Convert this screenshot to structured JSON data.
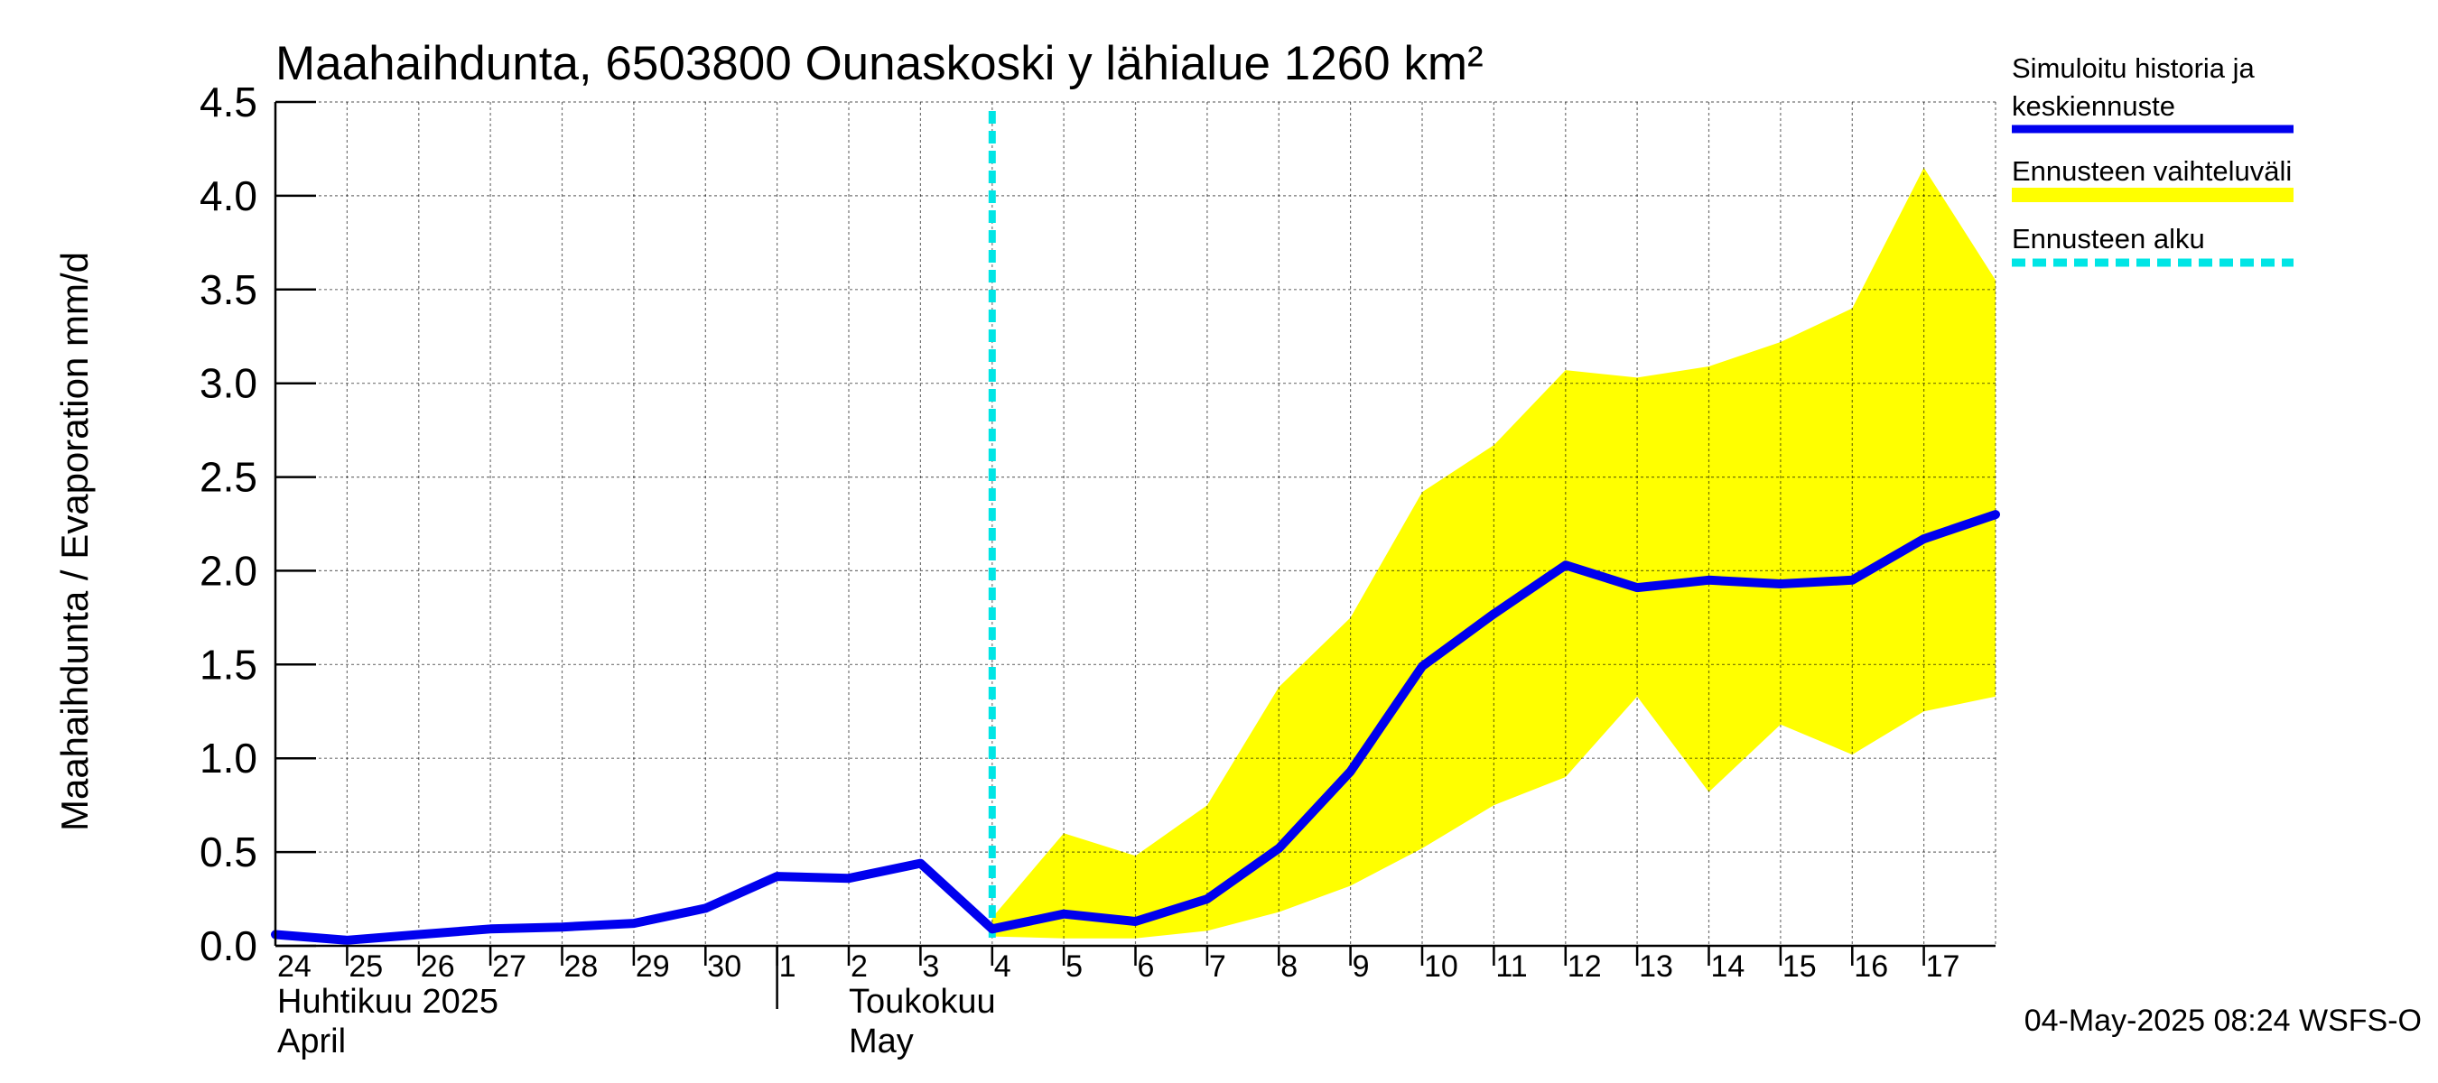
{
  "chart_data": {
    "type": "line",
    "title": "Maahaihdunta, 6503800 Ounaskoski y lähialue 1260 km²",
    "ylabel": "Maahaihdunta / Evaporation   mm/d",
    "ylim": [
      0.0,
      4.5
    ],
    "yticks": [
      "0.0",
      "0.5",
      "1.0",
      "1.5",
      "2.0",
      "2.5",
      "3.0",
      "3.5",
      "4.0",
      "4.5"
    ],
    "x": [
      "24",
      "25",
      "26",
      "27",
      "28",
      "29",
      "30",
      "1",
      "2",
      "3",
      "4",
      "5",
      "6",
      "7",
      "8",
      "9",
      "10",
      "11",
      "12",
      "13",
      "14",
      "15",
      "16",
      "17"
    ],
    "month_labels": [
      {
        "line1": "Huhtikuu  2025",
        "line2": "April"
      },
      {
        "line1": "Toukokuu",
        "line2": "May"
      }
    ],
    "series": [
      {
        "name": "Simuloitu historia ja keskiennuste",
        "color": "#0000ee",
        "x": [
          0,
          1,
          2,
          3,
          4,
          5,
          6,
          7,
          8,
          9,
          10,
          11,
          12,
          13,
          14,
          15,
          16,
          17,
          18,
          19,
          20,
          21,
          22,
          23,
          24
        ],
        "values": [
          0.06,
          0.03,
          0.06,
          0.09,
          0.1,
          0.12,
          0.2,
          0.37,
          0.36,
          0.44,
          0.09,
          0.17,
          0.13,
          0.25,
          0.52,
          0.93,
          1.49,
          1.77,
          2.03,
          1.91,
          1.95,
          1.93,
          1.95,
          2.17,
          2.3
        ]
      },
      {
        "name": "Ennusteen vaihteluväli",
        "color": "#ffff00",
        "type": "band",
        "x": [
          10,
          11,
          12,
          13,
          14,
          15,
          16,
          17,
          18,
          19,
          20,
          21,
          22,
          23,
          24
        ],
        "upper": [
          0.15,
          0.6,
          0.48,
          0.75,
          1.38,
          1.75,
          2.42,
          2.67,
          3.07,
          3.03,
          3.09,
          3.22,
          3.4,
          4.15,
          3.55
        ],
        "lower": [
          0.05,
          0.04,
          0.04,
          0.08,
          0.18,
          0.32,
          0.52,
          0.75,
          0.9,
          1.33,
          0.82,
          1.18,
          1.02,
          1.25,
          1.33
        ]
      },
      {
        "name": "Ennusteen alku",
        "color": "#00e5e5",
        "type": "vline",
        "x": 10
      }
    ],
    "legend_position": "right",
    "grid": true
  },
  "legend": {
    "items": [
      {
        "line1": "Simuloitu historia ja",
        "line2": "keskiennuste",
        "color": "#0000ee",
        "style": "solid"
      },
      {
        "line1": "Ennusteen vaihteluväli",
        "line2": "",
        "color": "#ffff00",
        "style": "solid"
      },
      {
        "line1": "Ennusteen alku",
        "line2": "",
        "color": "#00e5e5",
        "style": "dashed"
      }
    ]
  },
  "footer": {
    "timestamp": "04-May-2025 08:24 WSFS-O"
  }
}
